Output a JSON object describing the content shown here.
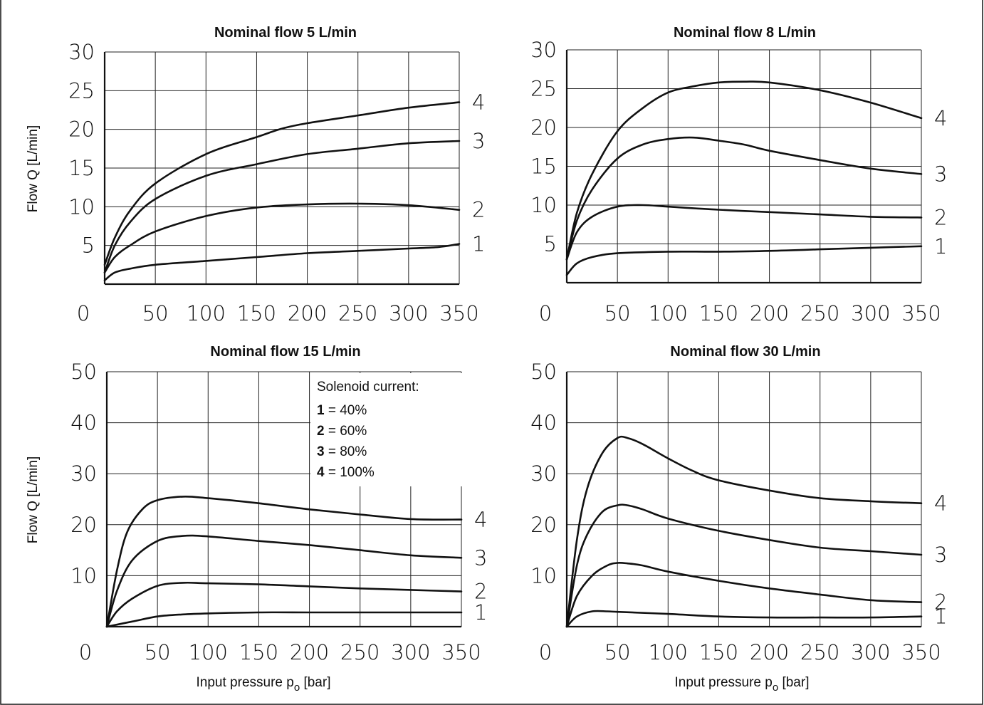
{
  "chart_data": [
    {
      "type": "line",
      "title": "Nominal flow 5 L/min",
      "ylabel": "Flow Q  [L/min]",
      "xlabel": "",
      "xlim": [
        0,
        350
      ],
      "ylim": [
        0,
        30
      ],
      "xticks": [
        0,
        50,
        100,
        150,
        200,
        250,
        300,
        350
      ],
      "yticks": [
        5,
        10,
        15,
        20,
        25,
        30
      ],
      "grid": true,
      "series": [
        {
          "name": "1",
          "x": [
            0,
            10,
            25,
            50,
            100,
            150,
            200,
            250,
            300,
            330,
            350
          ],
          "y": [
            0.5,
            1.5,
            2,
            2.5,
            3,
            3.5,
            4,
            4.3,
            4.6,
            4.8,
            5.2
          ]
        },
        {
          "name": "2",
          "x": [
            0,
            10,
            25,
            50,
            100,
            150,
            200,
            250,
            300,
            350
          ],
          "y": [
            1.5,
            3.5,
            5,
            6.8,
            8.8,
            9.9,
            10.3,
            10.4,
            10.2,
            9.6
          ]
        },
        {
          "name": "3",
          "x": [
            0,
            10,
            25,
            50,
            100,
            150,
            200,
            250,
            300,
            350
          ],
          "y": [
            1.5,
            5,
            8,
            11,
            14,
            15.5,
            16.8,
            17.5,
            18.2,
            18.5
          ]
        },
        {
          "name": "4",
          "x": [
            0,
            10,
            25,
            50,
            100,
            150,
            175,
            200,
            250,
            300,
            350
          ],
          "y": [
            2.5,
            6,
            9.5,
            13,
            16.8,
            19,
            20.1,
            20.8,
            21.8,
            22.8,
            23.5
          ]
        }
      ]
    },
    {
      "type": "line",
      "title": "Nominal flow 8 L/min",
      "ylabel": "",
      "xlabel": "",
      "xlim": [
        0,
        350
      ],
      "ylim": [
        0,
        30
      ],
      "xticks": [
        0,
        50,
        100,
        150,
        200,
        250,
        300,
        350
      ],
      "yticks": [
        5,
        10,
        15,
        20,
        25,
        30
      ],
      "grid": true,
      "series": [
        {
          "name": "1",
          "x": [
            0,
            10,
            25,
            50,
            100,
            150,
            200,
            250,
            300,
            350
          ],
          "y": [
            1,
            2.5,
            3.3,
            3.8,
            4,
            4,
            4.1,
            4.3,
            4.5,
            4.7
          ]
        },
        {
          "name": "2",
          "x": [
            0,
            10,
            25,
            50,
            75,
            100,
            150,
            200,
            250,
            300,
            350
          ],
          "y": [
            3,
            6.5,
            8.5,
            9.8,
            10,
            9.8,
            9.4,
            9.1,
            8.8,
            8.5,
            8.4
          ]
        },
        {
          "name": "3",
          "x": [
            0,
            10,
            25,
            50,
            75,
            100,
            125,
            150,
            175,
            200,
            250,
            300,
            350
          ],
          "y": [
            3,
            8,
            12,
            16,
            17.8,
            18.5,
            18.7,
            18.3,
            17.8,
            17,
            15.8,
            14.7,
            14
          ]
        },
        {
          "name": "4",
          "x": [
            0,
            10,
            25,
            50,
            75,
            100,
            125,
            150,
            175,
            200,
            250,
            300,
            350
          ],
          "y": [
            3,
            9,
            14,
            19.5,
            22.5,
            24.5,
            25.3,
            25.8,
            25.9,
            25.8,
            24.8,
            23.2,
            21.2
          ]
        }
      ]
    },
    {
      "type": "line",
      "title": "Nominal flow 15 L/min",
      "ylabel": "Flow Q  [L/min]",
      "xlabel": "Input pressure p",
      "xlabel_sub": "o",
      "xlabel_tail": " [bar]",
      "xlim": [
        0,
        350
      ],
      "ylim": [
        0,
        50
      ],
      "xticks": [
        0,
        50,
        100,
        150,
        200,
        250,
        300,
        350
      ],
      "yticks": [
        10,
        20,
        30,
        40,
        50
      ],
      "grid": true,
      "legend": {
        "position": "top-right",
        "title": "Solenoid current:",
        "entries": [
          {
            "key": "1",
            "text": " = 40%"
          },
          {
            "key": "2",
            "text": " = 60%"
          },
          {
            "key": "3",
            "text": " = 80%"
          },
          {
            "key": "4",
            "text": " = 100%"
          }
        ]
      },
      "series": [
        {
          "name": "1",
          "x": [
            0,
            25,
            50,
            75,
            100,
            150,
            200,
            250,
            300,
            350
          ],
          "y": [
            0,
            1,
            2,
            2.4,
            2.6,
            2.8,
            2.8,
            2.8,
            2.8,
            2.8
          ]
        },
        {
          "name": "2",
          "x": [
            0,
            10,
            25,
            50,
            75,
            100,
            150,
            200,
            250,
            300,
            350
          ],
          "y": [
            0,
            3,
            5.5,
            8,
            8.6,
            8.5,
            8.3,
            7.9,
            7.5,
            7.2,
            6.9
          ]
        },
        {
          "name": "3",
          "x": [
            0,
            10,
            25,
            50,
            75,
            100,
            150,
            200,
            250,
            300,
            350
          ],
          "y": [
            0,
            7,
            13,
            16.8,
            17.8,
            17.7,
            16.8,
            16,
            15,
            14,
            13.5
          ]
        },
        {
          "name": "4",
          "x": [
            0,
            10,
            20,
            35,
            50,
            75,
            100,
            150,
            200,
            250,
            300,
            350
          ],
          "y": [
            0,
            11,
            18.5,
            23,
            24.8,
            25.5,
            25.2,
            24.2,
            23,
            22,
            21.1,
            21
          ]
        }
      ]
    },
    {
      "type": "line",
      "title": "Nominal flow 30 L/min",
      "ylabel": "",
      "xlabel": "Input pressure p",
      "xlabel_sub": "o",
      "xlabel_tail": " [bar]",
      "xlim": [
        0,
        350
      ],
      "ylim": [
        0,
        50
      ],
      "xticks": [
        0,
        50,
        100,
        150,
        200,
        250,
        300,
        350
      ],
      "yticks": [
        10,
        20,
        30,
        40,
        50
      ],
      "grid": true,
      "series": [
        {
          "name": "1",
          "x": [
            0,
            10,
            25,
            40,
            50,
            100,
            150,
            200,
            250,
            300,
            350
          ],
          "y": [
            0,
            2,
            3,
            3,
            2.9,
            2.5,
            2,
            1.8,
            1.8,
            1.8,
            2
          ]
        },
        {
          "name": "2",
          "x": [
            0,
            10,
            25,
            40,
            50,
            60,
            75,
            100,
            150,
            200,
            250,
            300,
            350
          ],
          "y": [
            0,
            6,
            10,
            12,
            12.5,
            12.4,
            12,
            10.8,
            9,
            7.5,
            6.3,
            5.2,
            4.8
          ]
        },
        {
          "name": "3",
          "x": [
            0,
            10,
            20,
            35,
            50,
            60,
            75,
            100,
            150,
            200,
            250,
            300,
            350
          ],
          "y": [
            0,
            12,
            18,
            22.5,
            23.8,
            23.8,
            23,
            21.2,
            18.8,
            17,
            15.5,
            14.8,
            14.1
          ]
        },
        {
          "name": "4",
          "x": [
            0,
            10,
            20,
            35,
            50,
            60,
            75,
            100,
            125,
            150,
            200,
            250,
            300,
            350
          ],
          "y": [
            0,
            17,
            27,
            34,
            37,
            37,
            35.8,
            33,
            30.5,
            28.7,
            26.7,
            25.2,
            24.6,
            24.2
          ]
        }
      ]
    }
  ]
}
